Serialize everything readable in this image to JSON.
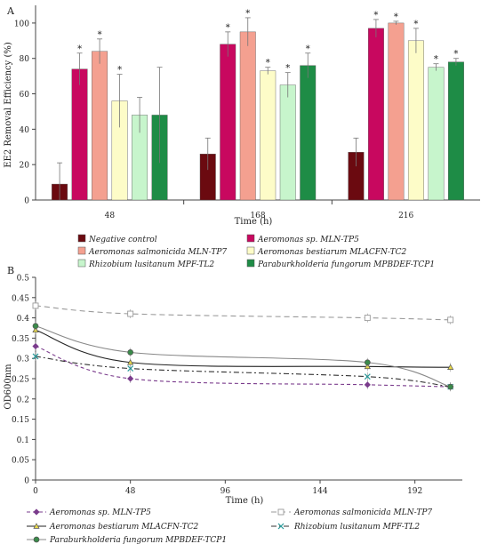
{
  "chart_data": [
    {
      "panel_label": "A",
      "type": "bar",
      "xlabel": "Time (h)",
      "ylabel": "EE2 Removal Efficiency (%)",
      "ylim": [
        0,
        110
      ],
      "yticks": [
        "0",
        "20",
        "40",
        "60",
        "80",
        "100"
      ],
      "categories": [
        "48",
        "168",
        "216"
      ],
      "series": [
        {
          "name": "Negative control",
          "color": "#6b0a10",
          "values": [
            9,
            26,
            27
          ],
          "errors": [
            12,
            9,
            8
          ],
          "significance": [
            "",
            "",
            ""
          ]
        },
        {
          "name": "Aeromonas sp. MLN-TP5",
          "color": "#c8085f",
          "values": [
            74,
            88,
            97
          ],
          "errors": [
            9,
            7,
            5
          ],
          "significance": [
            "*",
            "*",
            "*"
          ]
        },
        {
          "name": "Aeromonas salmonicida MLN-TP7",
          "color": "#f4a090",
          "values": [
            84,
            95,
            100
          ],
          "errors": [
            7,
            8,
            1
          ],
          "significance": [
            "*",
            "*",
            "*"
          ]
        },
        {
          "name": "Aeromonas bestiarum MLACFN-TC2",
          "color": "#fdfcc8",
          "values": [
            56,
            73,
            90
          ],
          "errors": [
            15,
            2,
            7
          ],
          "significance": [
            "*",
            "*",
            "*"
          ]
        },
        {
          "name": "Rhizobium lusitanum MPF-TL2",
          "color": "#c7f5cc",
          "values": [
            48,
            65,
            75
          ],
          "errors": [
            10,
            7,
            2
          ],
          "significance": [
            "",
            "*",
            "*"
          ]
        },
        {
          "name": "Paraburkholderia fungorum MPBDEF-TCP1",
          "color": "#1e8c46",
          "values": [
            48,
            76,
            78
          ],
          "errors": [
            27,
            7,
            2
          ],
          "significance": [
            "",
            "*",
            "*"
          ]
        }
      ],
      "legend": {
        "placement": "bottom",
        "columns": 2
      }
    },
    {
      "panel_label": "B",
      "type": "line",
      "xlabel": "Time (h)",
      "ylabel": "OD600nm",
      "xlim": [
        0,
        216
      ],
      "ylim": [
        0,
        0.5
      ],
      "xticks": [
        "0",
        "48",
        "96",
        "144",
        "192"
      ],
      "yticks": [
        "0",
        "0.05",
        "0.1",
        "0.15",
        "0.2",
        "0.25",
        "0.3",
        "0.35",
        "0.4",
        "0.45",
        "0.5"
      ],
      "x": [
        0,
        48,
        168,
        210
      ],
      "series": [
        {
          "name": "Aeromonas sp. MLN-TP5",
          "color": "#7a3b8c",
          "marker": "diamond",
          "dash": "4,3",
          "values": [
            0.33,
            0.25,
            0.235,
            0.23
          ]
        },
        {
          "name": "Aeromonas salmonicida MLN-TP7",
          "color": "#9a9a9a",
          "marker": "square",
          "dash": "6,4",
          "values": [
            0.43,
            0.41,
            0.4,
            0.395
          ]
        },
        {
          "name": "Aeromonas bestiarum MLACFN-TC2",
          "color": "#222222",
          "marker": "triangle",
          "dash": "",
          "values": [
            0.37,
            0.29,
            0.28,
            0.278
          ]
        },
        {
          "name": "Rhizobium lusitanum MPF-TL2",
          "color": "#333333",
          "marker": "x",
          "dash": "6,3,2,3",
          "values": [
            0.305,
            0.275,
            0.255,
            0.23
          ]
        },
        {
          "name": "Paraburkholderia fungorum MPBDEF-TCP1",
          "color": "#888888",
          "marker": "circle",
          "dash": "",
          "values": [
            0.38,
            0.315,
            0.29,
            0.23
          ]
        }
      ],
      "legend": {
        "placement": "bottom",
        "columns": 2
      }
    }
  ],
  "colors": {
    "axis": "#444444",
    "tp5_marker": "#7a3b8c",
    "tc2_marker": "#e8d84a",
    "tl2_marker": "#2a9a9a",
    "tcp1_marker": "#3a8a4a",
    "tp7_marker": "#ffffff"
  }
}
